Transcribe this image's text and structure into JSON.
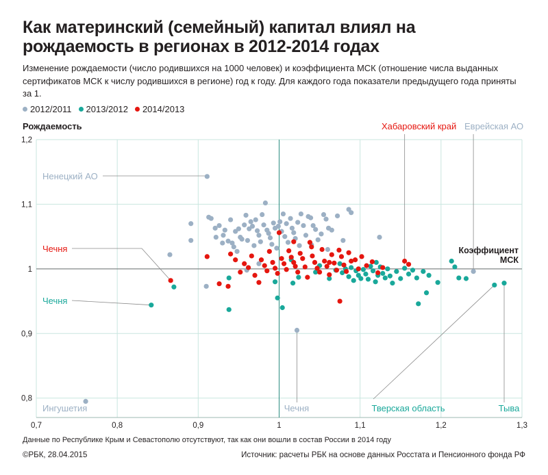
{
  "title": "Как материнский (семейный) капитал влиял на рождаемость в регионах в 2012-2014 годах",
  "subtitle": "Изменение рождаемости (число родившихся на 1000 человек) и коэффициента МСК (отношение числа выданных сертификатов МСК к числу родившихся в регионе) год к году. Для каждого года показатели предыдущего года приняты за 1.",
  "footnote": "Данные по Республике Крым и Севастополю отсутствуют, так как они вошли в состав России в 2014 году",
  "credit": "©РБК, 28.04.2015",
  "source_prefix": "Источник: ",
  "source": "расчеты РБК на основе данных Росстата и Пенсионного фонда РФ",
  "colors": {
    "2012/2011": "#9cb0c4",
    "2013/2012": "#19a89a",
    "2014/2013": "#e5160f",
    "text": "#231f20",
    "grid": "#c9e6df"
  },
  "chart_data": {
    "type": "scatter",
    "title": "Как материнский (семейный) капитал влиял на рождаемость в регионах в 2012-2014 годах",
    "xlabel": "Коэффициент МСК",
    "ylabel": "Рождаемость",
    "xlim": [
      0.7,
      1.3
    ],
    "ylim": [
      0.77,
      1.2
    ],
    "xticks": [
      "0,7",
      "0,8",
      "0,9",
      "1",
      "1,1",
      "1,2",
      "1,3"
    ],
    "yticks": [
      "0,8",
      "0,9",
      "1",
      "1,1",
      "1,2"
    ],
    "grid": true,
    "legend": "top-left",
    "series": [
      {
        "name": "2012/2011",
        "color": "#9cb0c4",
        "points": [
          [
            0.761,
            0.795
          ],
          [
            0.911,
            1.143
          ],
          [
            0.865,
            1.022
          ],
          [
            0.891,
            1.07
          ],
          [
            0.891,
            1.044
          ],
          [
            0.91,
            0.973
          ],
          [
            0.913,
            1.08
          ],
          [
            0.916,
            1.078
          ],
          [
            0.921,
            1.063
          ],
          [
            0.922,
            1.049
          ],
          [
            0.926,
            1.067
          ],
          [
            0.93,
            1.04
          ],
          [
            0.931,
            1.052
          ],
          [
            0.933,
            1.06
          ],
          [
            0.937,
            1.043
          ],
          [
            0.94,
            1.076
          ],
          [
            0.942,
            1.04
          ],
          [
            0.944,
            1.034
          ],
          [
            0.946,
            1.058
          ],
          [
            0.948,
            1.027
          ],
          [
            0.95,
            1.062
          ],
          [
            0.952,
            1.049
          ],
          [
            0.954,
            1.046
          ],
          [
            0.957,
            1.068
          ],
          [
            0.959,
            1.083
          ],
          [
            0.961,
            1.044
          ],
          [
            0.963,
            1.062
          ],
          [
            0.965,
            1.073
          ],
          [
            0.967,
            1.066
          ],
          [
            0.969,
            1.036
          ],
          [
            0.971,
            1.076
          ],
          [
            0.973,
            1.059
          ],
          [
            0.975,
            1.052
          ],
          [
            0.977,
            1.042
          ],
          [
            0.979,
            1.084
          ],
          [
            0.981,
            1.068
          ],
          [
            0.983,
            1.102
          ],
          [
            0.985,
            1.06
          ],
          [
            0.987,
            1.055
          ],
          [
            0.989,
            1.048
          ],
          [
            0.991,
            1.038
          ],
          [
            0.993,
            1.071
          ],
          [
            0.995,
            1.063
          ],
          [
            0.997,
            1.032
          ],
          [
            0.999,
            1.066
          ],
          [
            1.001,
            1.073
          ],
          [
            1.003,
            1.058
          ],
          [
            1.005,
            1.085
          ],
          [
            1.007,
            1.05
          ],
          [
            1.009,
            1.07
          ],
          [
            1.011,
            1.041
          ],
          [
            1.014,
            1.078
          ],
          [
            1.016,
            1.063
          ],
          [
            1.018,
            1.056
          ],
          [
            1.02,
            1.047
          ],
          [
            1.023,
            1.072
          ],
          [
            1.025,
            1.036
          ],
          [
            1.027,
            1.085
          ],
          [
            1.03,
            1.067
          ],
          [
            1.033,
            1.052
          ],
          [
            1.036,
            1.081
          ],
          [
            1.039,
            1.079
          ],
          [
            1.042,
            1.067
          ],
          [
            1.045,
            1.061
          ],
          [
            1.048,
            1.045
          ],
          [
            1.052,
            1.054
          ],
          [
            1.055,
            1.084
          ],
          [
            1.058,
            1.077
          ],
          [
            1.061,
            1.063
          ],
          [
            1.065,
            1.06
          ],
          [
            1.072,
            1.082
          ],
          [
            1.079,
            1.044
          ],
          [
            1.086,
            1.092
          ],
          [
            1.089,
            1.087
          ],
          [
            1.04,
            1.037
          ],
          [
            1.06,
            1.03
          ],
          [
            0.96,
            0.998
          ],
          [
            0.975,
            1.008
          ],
          [
            1.022,
            0.905
          ],
          [
            1.24,
            0.996
          ],
          [
            1.124,
            1.049
          ]
        ]
      },
      {
        "name": "2013/2012",
        "color": "#19a89a",
        "points": [
          [
            0.842,
            0.944
          ],
          [
            0.87,
            0.972
          ],
          [
            0.938,
            0.937
          ],
          [
            0.938,
            0.986
          ],
          [
            0.998,
            0.955
          ],
          [
            1.004,
            0.94
          ],
          [
            1.017,
            0.978
          ],
          [
            1.024,
            0.987
          ],
          [
            1.045,
            0.995
          ],
          [
            1.062,
            0.985
          ],
          [
            1.07,
            0.998
          ],
          [
            1.078,
            0.994
          ],
          [
            1.082,
            1.0
          ],
          [
            1.086,
            0.988
          ],
          [
            1.089,
            1.002
          ],
          [
            1.092,
            0.982
          ],
          [
            1.095,
            0.997
          ],
          [
            1.098,
            0.99
          ],
          [
            1.101,
            0.985
          ],
          [
            1.104,
            0.999
          ],
          [
            1.107,
            0.992
          ],
          [
            1.11,
            0.984
          ],
          [
            1.113,
            1.004
          ],
          [
            1.116,
            0.997
          ],
          [
            1.119,
            0.98
          ],
          [
            1.122,
            0.99
          ],
          [
            1.125,
            1.003
          ],
          [
            1.128,
            0.993
          ],
          [
            1.131,
            0.986
          ],
          [
            1.134,
            1.0
          ],
          [
            1.137,
            0.989
          ],
          [
            1.14,
            0.978
          ],
          [
            1.145,
            0.996
          ],
          [
            1.15,
            0.985
          ],
          [
            1.155,
            1.001
          ],
          [
            1.16,
            0.992
          ],
          [
            1.165,
            0.998
          ],
          [
            1.17,
            0.986
          ],
          [
            1.172,
            0.946
          ],
          [
            1.178,
            0.996
          ],
          [
            1.182,
            0.963
          ],
          [
            1.185,
            0.99
          ],
          [
            1.196,
            0.979
          ],
          [
            1.213,
            1.012
          ],
          [
            1.217,
            1.003
          ],
          [
            1.222,
            0.986
          ],
          [
            1.231,
            0.985
          ],
          [
            1.266,
            0.975
          ],
          [
            1.278,
            0.978
          ],
          [
            1.075,
            1.008
          ],
          [
            1.12,
            1.01
          ],
          [
            1.015,
            1.014
          ],
          [
            1.05,
            1.005
          ],
          [
            0.995,
            0.98
          ]
        ]
      },
      {
        "name": "2014/2013",
        "color": "#e5160f",
        "points": [
          [
            0.866,
            0.982
          ],
          [
            0.911,
            1.019
          ],
          [
            0.926,
            0.977
          ],
          [
            0.937,
            0.973
          ],
          [
            0.94,
            1.023
          ],
          [
            0.946,
            1.014
          ],
          [
            0.952,
            0.995
          ],
          [
            0.957,
            1.008
          ],
          [
            0.962,
            1.002
          ],
          [
            0.966,
            1.02
          ],
          [
            0.97,
            0.99
          ],
          [
            0.975,
            0.979
          ],
          [
            0.978,
            1.014
          ],
          [
            0.982,
            1.005
          ],
          [
            0.985,
            0.997
          ],
          [
            0.988,
            1.027
          ],
          [
            0.992,
            1.01
          ],
          [
            0.995,
            1.001
          ],
          [
            0.998,
            0.993
          ],
          [
            1.0,
            1.056
          ],
          [
            1.003,
            1.016
          ],
          [
            1.006,
            1.008
          ],
          [
            1.009,
            0.999
          ],
          [
            1.012,
            1.028
          ],
          [
            1.015,
            1.018
          ],
          [
            1.018,
            1.01
          ],
          [
            1.02,
            1.004
          ],
          [
            1.023,
            0.995
          ],
          [
            1.026,
            1.024
          ],
          [
            1.029,
            1.016
          ],
          [
            1.032,
            1.003
          ],
          [
            1.035,
            0.987
          ],
          [
            1.038,
            1.041
          ],
          [
            1.041,
            1.02
          ],
          [
            1.044,
            1.01
          ],
          [
            1.047,
            1.001
          ],
          [
            1.05,
            0.995
          ],
          [
            1.053,
            1.03
          ],
          [
            1.056,
            1.012
          ],
          [
            1.059,
            1.004
          ],
          [
            1.062,
            0.991
          ],
          [
            1.065,
            1.022
          ],
          [
            1.068,
            1.009
          ],
          [
            1.071,
            0.998
          ],
          [
            1.074,
            1.029
          ],
          [
            1.077,
            1.019
          ],
          [
            1.08,
            1.006
          ],
          [
            1.083,
            0.996
          ],
          [
            1.086,
            1.025
          ],
          [
            1.089,
            1.012
          ],
          [
            1.094,
            1.014
          ],
          [
            1.098,
            1.0
          ],
          [
            1.102,
            1.019
          ],
          [
            1.108,
            1.005
          ],
          [
            1.115,
            1.011
          ],
          [
            1.122,
            0.994
          ],
          [
            1.128,
            1.002
          ],
          [
            1.155,
            1.012
          ],
          [
            1.16,
            1.007
          ],
          [
            1.075,
            0.95
          ],
          [
            1.062,
            1.01
          ],
          [
            1.04,
            1.034
          ],
          [
            1.018,
            1.042
          ]
        ]
      }
    ],
    "annotations": [
      {
        "text": "Ненецкий АО",
        "color": "#9cb0c4"
      },
      {
        "text": "Чечня",
        "color": "#e5160f"
      },
      {
        "text": "Чечня",
        "color": "#19a89a"
      },
      {
        "text": "Ингушетия",
        "color": "#9cb0c4"
      },
      {
        "text": "Чечня",
        "color": "#9cb0c4"
      },
      {
        "text": "Тверская область",
        "color": "#19a89a"
      },
      {
        "text": "Тыва",
        "color": "#19a89a"
      },
      {
        "text": "Хабаровский край",
        "color": "#e5160f"
      },
      {
        "text": "Еврейская АО",
        "color": "#9cb0c4"
      },
      {
        "text": "Коэффициент МСК",
        "color": "#231f20"
      }
    ]
  }
}
